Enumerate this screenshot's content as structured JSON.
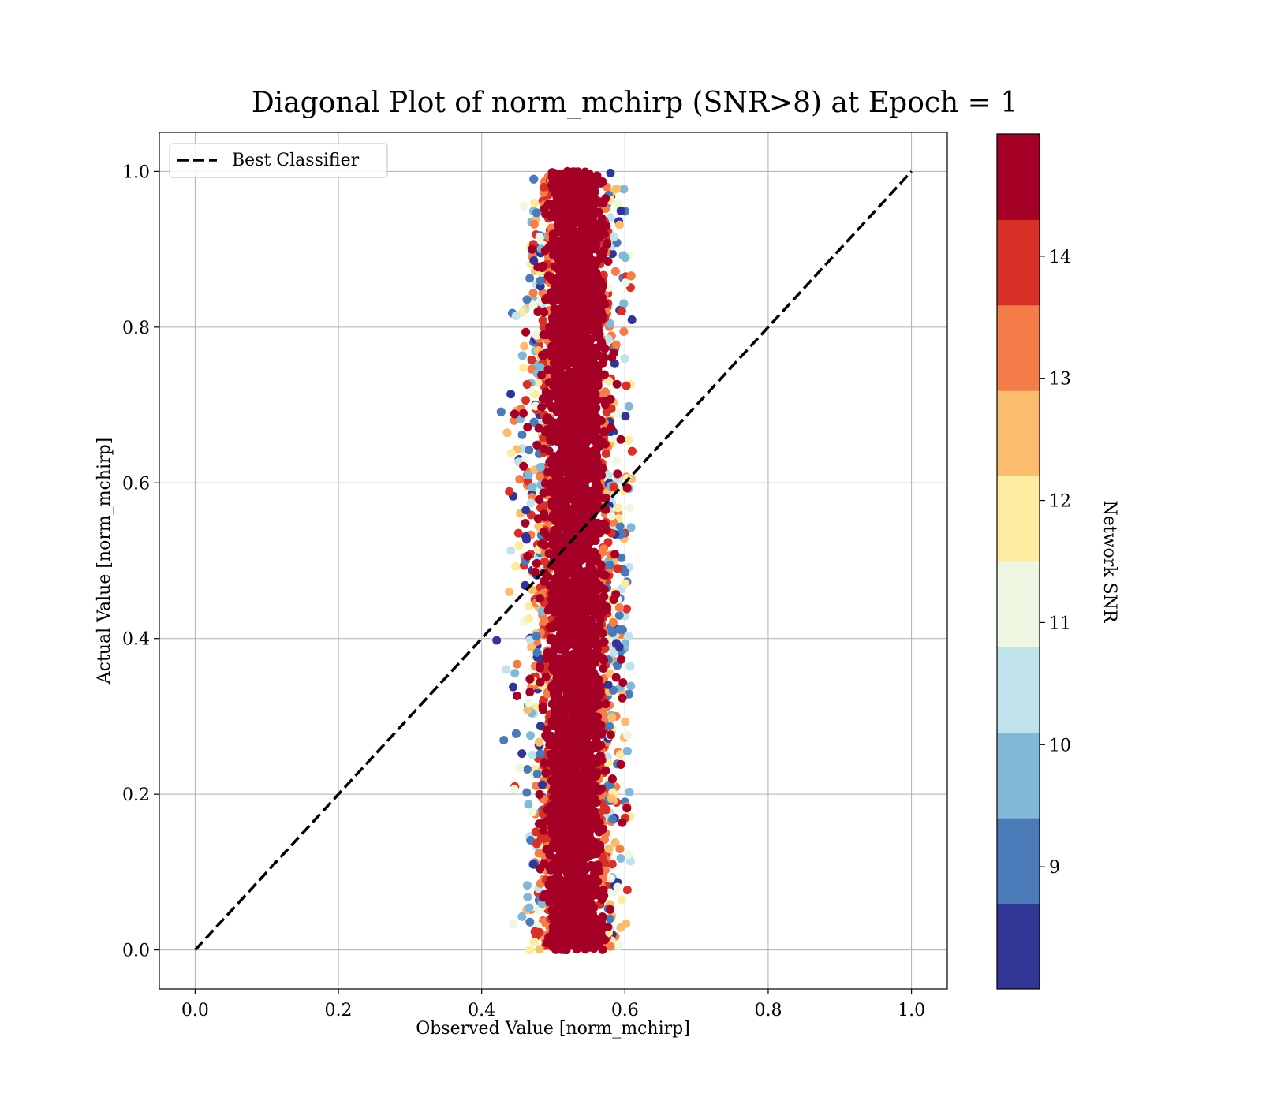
{
  "chart_data": {
    "type": "scatter",
    "title": "Diagonal Plot of norm_mchirp (SNR>8) at Epoch = 1",
    "xlabel": "Observed Value [norm_mchirp]",
    "ylabel": "Actual Value [norm_mchirp]",
    "xlim": [
      -0.05,
      1.05
    ],
    "ylim": [
      -0.05,
      1.05
    ],
    "x_ticks": [
      "0.0",
      "0.2",
      "0.4",
      "0.6",
      "0.8",
      "1.0"
    ],
    "y_ticks": [
      "0.0",
      "0.2",
      "0.4",
      "0.6",
      "0.8",
      "1.0"
    ],
    "grid": true,
    "legend": {
      "position": "upper-left",
      "entries": [
        "Best Classifier"
      ]
    },
    "reference_line": {
      "name": "Best Classifier",
      "x": [
        0.0,
        1.0
      ],
      "y": [
        0.0,
        1.0
      ],
      "style": "dashed",
      "color": "#000000"
    },
    "scatter_cloud": {
      "x_center": 0.53,
      "x_spread": 0.025,
      "x_range": [
        0.41,
        0.61
      ],
      "y_range": [
        0.0,
        1.0
      ],
      "color_by": "Network SNR",
      "colormap": "RdYlBu_r"
    },
    "colorbar": {
      "label": "Network SNR",
      "range": [
        8.0,
        15.0
      ],
      "ticks": [
        "9",
        "10",
        "11",
        "12",
        "13",
        "14"
      ],
      "tick_values": [
        9,
        10,
        11,
        12,
        13,
        14
      ],
      "colors": [
        "#313695",
        "#4a7ab7",
        "#82b8d7",
        "#bfe2ed",
        "#eef7e1",
        "#fdeca0",
        "#fbbd6d",
        "#f47d4a",
        "#d73027",
        "#a50026"
      ]
    }
  }
}
